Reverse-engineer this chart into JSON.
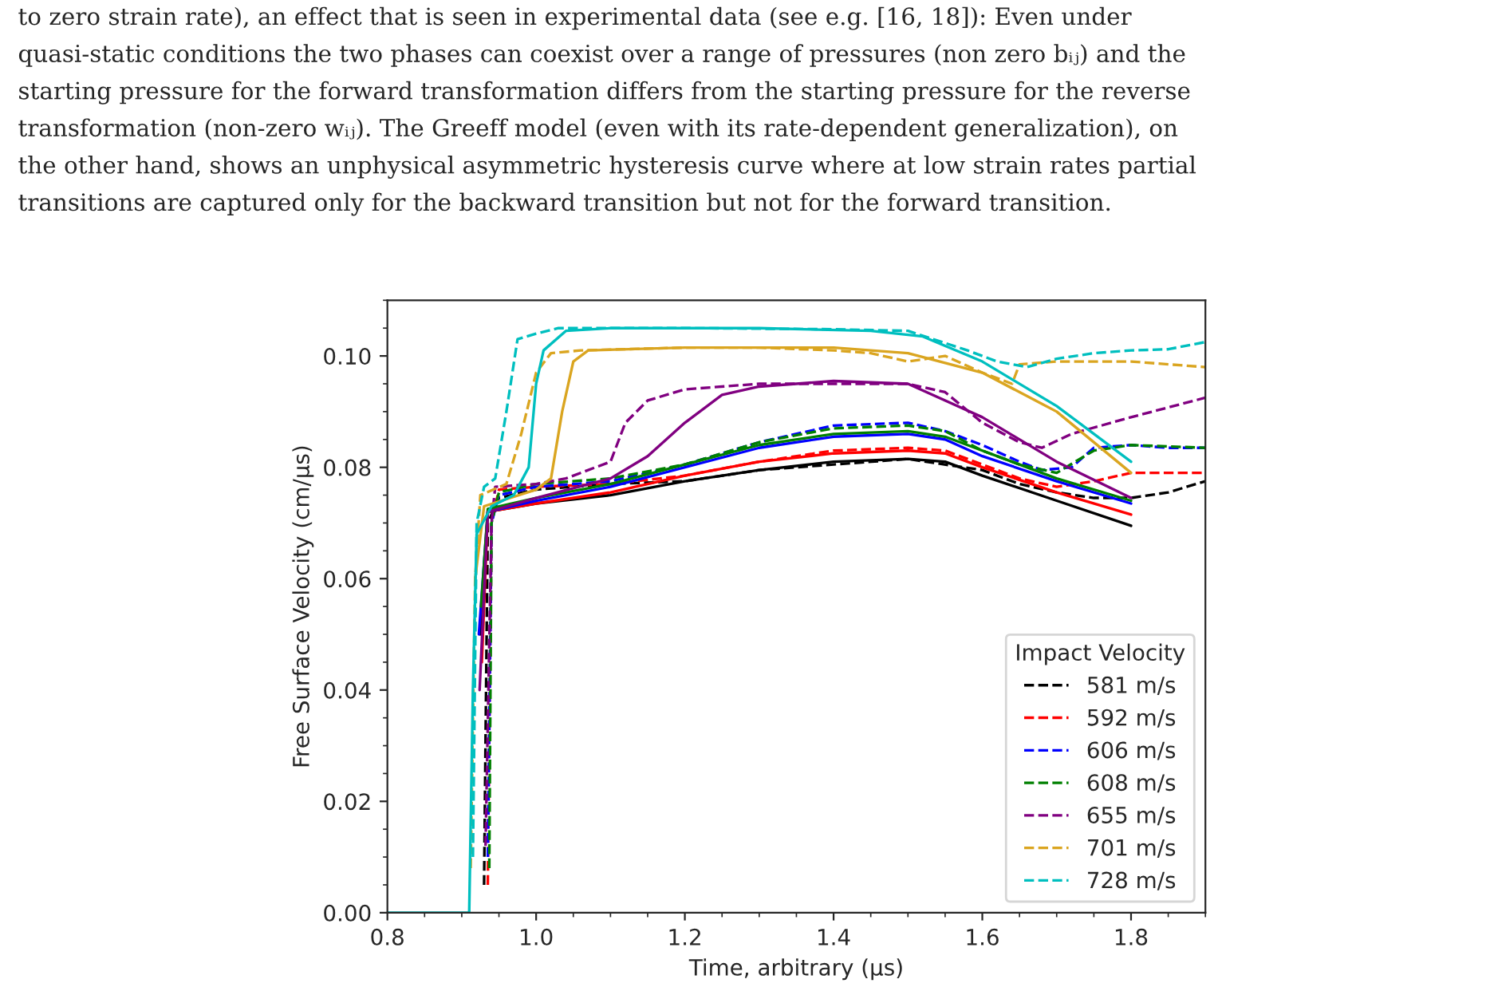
{
  "chart_data": {
    "type": "line",
    "annotations": [
      "to zero strain rate), an effect that is seen in experimental data (see e.g. [16, 18]): Even under",
      "quasi-static conditions the two phases can coexist over a range of pressures (non zero bᵢⱼ) and the",
      "starting pressure for the forward transformation differs from the starting pressure for the reverse",
      "transformation (non-zero wᵢⱼ). The Greeff model (even with its rate-dependent generalization), on",
      "the other hand, shows an unphysical asymmetric hysteresis curve where at low strain rates partial",
      "transitions are captured only for the backward transition but not for the forward transition."
    ],
    "xlabel": "Time, arbitrary (μs)",
    "ylabel": "Free Surface Velocity (cm/μs)",
    "legend_title": "Impact Velocity",
    "legend": "bottom right",
    "xlim": [
      0.8,
      1.9
    ],
    "ylim": [
      0.0,
      0.11
    ],
    "xticks": [
      {
        "value": 0.8,
        "label": "0.8"
      },
      {
        "value": 1.0,
        "label": "1.0"
      },
      {
        "value": 1.2,
        "label": "1.2"
      },
      {
        "value": 1.4,
        "label": "1.4"
      },
      {
        "value": 1.6,
        "label": "1.6"
      },
      {
        "value": 1.8,
        "label": "1.8"
      }
    ],
    "yticks": [
      {
        "value": 0.0,
        "label": "0.00"
      },
      {
        "value": 0.02,
        "label": "0.02"
      },
      {
        "value": 0.04,
        "label": "0.04"
      },
      {
        "value": 0.06,
        "label": "0.06"
      },
      {
        "value": 0.08,
        "label": "0.08"
      },
      {
        "value": 0.1,
        "label": "0.10"
      }
    ],
    "grid": false,
    "series": [
      {
        "name": "581 m/s",
        "color": "#000000",
        "line_style": "dashed",
        "x": [
          0.93,
          0.935,
          0.95,
          1.0,
          1.1,
          1.2,
          1.3,
          1.4,
          1.5,
          1.6,
          1.65,
          1.7,
          1.75,
          1.8,
          1.85,
          1.9
        ],
        "values": [
          0.005,
          0.07,
          0.0745,
          0.076,
          0.077,
          0.0775,
          0.0795,
          0.0805,
          0.0815,
          0.0795,
          0.077,
          0.0755,
          0.0745,
          0.0745,
          0.0755,
          0.0775
        ]
      },
      {
        "name": "592 m/s",
        "color": "#ff0000",
        "line_style": "dashed",
        "x": [
          0.935,
          0.94,
          0.95,
          1.0,
          1.1,
          1.2,
          1.3,
          1.4,
          1.5,
          1.55,
          1.6,
          1.65,
          1.7,
          1.75,
          1.8,
          1.9
        ],
        "values": [
          0.005,
          0.07,
          0.076,
          0.0765,
          0.077,
          0.0785,
          0.081,
          0.083,
          0.0835,
          0.083,
          0.0805,
          0.078,
          0.0765,
          0.0775,
          0.079,
          0.079
        ]
      },
      {
        "name": "606 m/s",
        "color": "#0000ff",
        "line_style": "dashed",
        "x": [
          0.935,
          0.94,
          0.95,
          1.0,
          1.1,
          1.2,
          1.3,
          1.4,
          1.5,
          1.55,
          1.6,
          1.65,
          1.68,
          1.72,
          1.75,
          1.8,
          1.85,
          1.9
        ],
        "values": [
          0.01,
          0.07,
          0.075,
          0.0765,
          0.0775,
          0.0805,
          0.0845,
          0.0875,
          0.088,
          0.0865,
          0.084,
          0.081,
          0.0795,
          0.08,
          0.0835,
          0.084,
          0.0835,
          0.0835
        ]
      },
      {
        "name": "608 m/s",
        "color": "#008000",
        "line_style": "dashed",
        "x": [
          0.937,
          0.94,
          0.95,
          1.0,
          1.1,
          1.2,
          1.3,
          1.4,
          1.5,
          1.55,
          1.6,
          1.65,
          1.7,
          1.75,
          1.8,
          1.9
        ],
        "values": [
          0.008,
          0.07,
          0.0755,
          0.077,
          0.078,
          0.0805,
          0.0845,
          0.087,
          0.0875,
          0.0865,
          0.083,
          0.0805,
          0.079,
          0.083,
          0.084,
          0.0835
        ]
      },
      {
        "name": "655 m/s",
        "color": "#800080",
        "line_style": "dashed",
        "x": [
          0.932,
          0.94,
          0.945,
          1.0,
          1.04,
          1.08,
          1.1,
          1.12,
          1.15,
          1.2,
          1.3,
          1.5,
          1.55,
          1.6,
          1.65,
          1.68,
          1.72,
          1.8,
          1.9
        ],
        "values": [
          0.012,
          0.07,
          0.0765,
          0.077,
          0.078,
          0.08,
          0.081,
          0.088,
          0.092,
          0.094,
          0.095,
          0.095,
          0.0935,
          0.088,
          0.0845,
          0.0835,
          0.086,
          0.089,
          0.0925
        ]
      },
      {
        "name": "701 m/s",
        "color": "#daa520",
        "line_style": "dashed",
        "x": [
          0.912,
          0.918,
          0.925,
          0.96,
          0.98,
          1.0,
          1.02,
          1.06,
          1.2,
          1.3,
          1.4,
          1.45,
          1.5,
          1.55,
          1.6,
          1.64,
          1.65,
          1.7,
          1.8,
          1.9
        ],
        "values": [
          0.008,
          0.06,
          0.075,
          0.077,
          0.086,
          0.097,
          0.1005,
          0.101,
          0.1015,
          0.1015,
          0.101,
          0.1005,
          0.099,
          0.1,
          0.097,
          0.095,
          0.0985,
          0.099,
          0.099,
          0.098
        ]
      },
      {
        "name": "728 m/s",
        "color": "#00bfbf",
        "line_style": "dashed",
        "x": [
          0.915,
          0.92,
          0.93,
          0.945,
          0.96,
          0.975,
          1.0,
          1.03,
          1.2,
          1.4,
          1.5,
          1.58,
          1.62,
          1.66,
          1.7,
          1.75,
          1.8,
          1.85,
          1.9
        ],
        "values": [
          0.01,
          0.07,
          0.0765,
          0.078,
          0.09,
          0.103,
          0.104,
          0.105,
          0.105,
          0.1048,
          0.1045,
          0.101,
          0.099,
          0.098,
          0.0995,
          0.1005,
          0.101,
          0.1012,
          0.1025
        ]
      },
      {
        "color": "#000000",
        "line_style": "solid",
        "x": [
          0.925,
          0.935,
          1.0,
          1.1,
          1.2,
          1.3,
          1.4,
          1.5,
          1.55,
          1.6,
          1.7,
          1.8
        ],
        "values": [
          0.05,
          0.072,
          0.0735,
          0.075,
          0.0775,
          0.0795,
          0.081,
          0.0815,
          0.081,
          0.0785,
          0.074,
          0.0695
        ]
      },
      {
        "color": "#ff0000",
        "line_style": "solid",
        "x": [
          0.927,
          0.935,
          1.0,
          1.1,
          1.2,
          1.3,
          1.4,
          1.5,
          1.55,
          1.6,
          1.7,
          1.8
        ],
        "values": [
          0.045,
          0.072,
          0.0735,
          0.0755,
          0.0785,
          0.081,
          0.0825,
          0.083,
          0.0825,
          0.08,
          0.0755,
          0.0715
        ]
      },
      {
        "color": "#0000ff",
        "line_style": "solid",
        "x": [
          0.923,
          0.935,
          1.0,
          1.1,
          1.2,
          1.3,
          1.4,
          1.5,
          1.55,
          1.6,
          1.7,
          1.8
        ],
        "values": [
          0.05,
          0.072,
          0.074,
          0.0765,
          0.08,
          0.0835,
          0.0855,
          0.086,
          0.085,
          0.082,
          0.0775,
          0.0735
        ]
      },
      {
        "color": "#008000",
        "line_style": "solid",
        "x": [
          0.926,
          0.935,
          1.0,
          1.1,
          1.2,
          1.3,
          1.4,
          1.5,
          1.55,
          1.6,
          1.7,
          1.8
        ],
        "values": [
          0.055,
          0.0725,
          0.0745,
          0.077,
          0.0805,
          0.084,
          0.086,
          0.0865,
          0.0855,
          0.083,
          0.078,
          0.074
        ]
      },
      {
        "color": "#800080",
        "line_style": "solid",
        "x": [
          0.924,
          0.935,
          1.0,
          1.1,
          1.15,
          1.2,
          1.25,
          1.3,
          1.4,
          1.5,
          1.6,
          1.7,
          1.8
        ],
        "values": [
          0.04,
          0.072,
          0.0745,
          0.078,
          0.082,
          0.088,
          0.093,
          0.0945,
          0.0955,
          0.095,
          0.089,
          0.081,
          0.0745
        ]
      },
      {
        "color": "#daa520",
        "line_style": "solid",
        "x": [
          0.918,
          0.93,
          1.0,
          1.02,
          1.035,
          1.05,
          1.07,
          1.2,
          1.4,
          1.5,
          1.6,
          1.7,
          1.8
        ],
        "values": [
          0.06,
          0.073,
          0.076,
          0.078,
          0.09,
          0.099,
          0.101,
          0.1015,
          0.1015,
          0.1005,
          0.097,
          0.09,
          0.079
        ]
      },
      {
        "color": "#00bfbf",
        "line_style": "solid",
        "x": [
          0.8,
          0.91,
          0.915,
          0.92,
          0.94,
          0.97,
          0.99,
          1.0,
          1.01,
          1.04,
          1.1,
          1.3,
          1.45,
          1.52,
          1.6,
          1.7,
          1.8
        ],
        "values": [
          0,
          0,
          0.04,
          0.068,
          0.073,
          0.075,
          0.08,
          0.095,
          0.101,
          0.1045,
          0.105,
          0.105,
          0.1045,
          0.1035,
          0.099,
          0.091,
          0.081
        ]
      }
    ]
  }
}
